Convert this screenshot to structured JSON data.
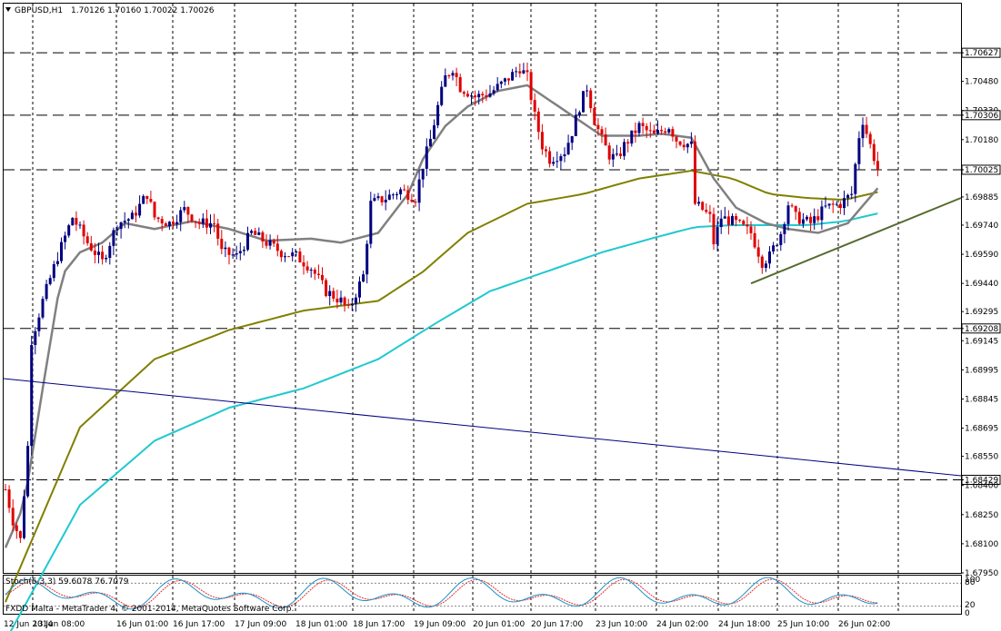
{
  "header": {
    "symbol": "GBPUSD,H1",
    "ohlc": "1.70126 1.70160 1.70022 1.70026"
  },
  "footer": {
    "broker": "FXDD Malta - MetaTrader 4, © 2001-2014, MetaQuotes Software Corp."
  },
  "indicator": {
    "label": "Stoch(5,3,3) 59.6078 76.7079",
    "levels": [
      "100",
      "80",
      "20",
      "0"
    ],
    "main_color": "#1e90c8",
    "signal_color": "#e03030"
  },
  "colors": {
    "bull": "#000080",
    "bear": "#e00000",
    "ma_fast": "#808080",
    "ma_mid": "#808000",
    "ma_slow": "#20c8d0",
    "trend_support": "#556b2f",
    "trend_blue": "#000080",
    "grid": "#000000"
  },
  "chart_data": {
    "type": "candlestick",
    "y_ticks": [
      "1.70627",
      "1.70480",
      "1.70330",
      "1.70306",
      "1.70180",
      "1.70025",
      "1.69885",
      "1.69740",
      "1.69590",
      "1.69440",
      "1.69295",
      "1.69208",
      "1.69145",
      "1.68995",
      "1.68845",
      "1.68695",
      "1.68550",
      "1.68429",
      "1.68400",
      "1.68250",
      "1.68100",
      "1.67950"
    ],
    "highlighted_levels": [
      "1.70627",
      "1.70306",
      "1.70025",
      "1.69208",
      "1.68429"
    ],
    "ylim": [
      1.6795,
      1.7088
    ],
    "x_ticks": [
      "12 Jun 2014",
      "13 Jun 08:00",
      "16 Jun 01:00",
      "16 Jun 17:00",
      "17 Jun 09:00",
      "18 Jun 01:00",
      "18 Jun 17:00",
      "19 Jun 09:00",
      "20 Jun 01:00",
      "20 Jun 17:00",
      "23 Jun 10:00",
      "24 Jun 02:00",
      "24 Jun 18:00",
      "25 Jun 10:00",
      "26 Jun 02:00"
    ],
    "close_anchors": [
      [
        0,
        1.6838
      ],
      [
        2,
        1.6822
      ],
      [
        4,
        1.6812
      ],
      [
        6,
        1.686
      ],
      [
        7,
        1.6915
      ],
      [
        10,
        1.6935
      ],
      [
        14,
        1.6958
      ],
      [
        18,
        1.6978
      ],
      [
        22,
        1.6965
      ],
      [
        26,
        1.6955
      ],
      [
        30,
        1.6975
      ],
      [
        34,
        1.6978
      ],
      [
        38,
        1.699
      ],
      [
        40,
        1.6978
      ],
      [
        44,
        1.6975
      ],
      [
        48,
        1.6982
      ],
      [
        52,
        1.6975
      ],
      [
        56,
        1.6975
      ],
      [
        58,
        1.696
      ],
      [
        62,
        1.6958
      ],
      [
        66,
        1.697
      ],
      [
        70,
        1.6965
      ],
      [
        74,
        1.696
      ],
      [
        78,
        1.6958
      ],
      [
        82,
        1.6952
      ],
      [
        86,
        1.694
      ],
      [
        90,
        1.6935
      ],
      [
        92,
        1.693
      ],
      [
        96,
        1.6948
      ],
      [
        98,
        1.6985
      ],
      [
        102,
        1.6988
      ],
      [
        106,
        1.6992
      ],
      [
        110,
        1.6988
      ],
      [
        112,
        1.7005
      ],
      [
        114,
        1.7018
      ],
      [
        116,
        1.7035
      ],
      [
        118,
        1.705
      ],
      [
        120,
        1.7055
      ],
      [
        122,
        1.7045
      ],
      [
        126,
        1.704
      ],
      [
        130,
        1.7042
      ],
      [
        134,
        1.7048
      ],
      [
        138,
        1.7055
      ],
      [
        140,
        1.705
      ],
      [
        142,
        1.703
      ],
      [
        144,
        1.7015
      ],
      [
        146,
        1.7008
      ],
      [
        150,
        1.7012
      ],
      [
        152,
        1.7022
      ],
      [
        154,
        1.7035
      ],
      [
        156,
        1.7045
      ],
      [
        158,
        1.7028
      ],
      [
        160,
        1.7018
      ],
      [
        162,
        1.701
      ],
      [
        164,
        1.7008
      ],
      [
        166,
        1.7015
      ],
      [
        168,
        1.702
      ],
      [
        170,
        1.7025
      ],
      [
        174,
        1.702
      ],
      [
        178,
        1.7025
      ],
      [
        180,
        1.7018
      ],
      [
        184,
        1.7015
      ],
      [
        185,
        1.6985
      ],
      [
        187,
        1.6982
      ],
      [
        189,
        1.6978
      ],
      [
        190,
        1.6965
      ],
      [
        192,
        1.6978
      ],
      [
        196,
        1.6975
      ],
      [
        200,
        1.697
      ],
      [
        203,
        1.6955
      ],
      [
        205,
        1.6958
      ],
      [
        208,
        1.697
      ],
      [
        210,
        1.6985
      ],
      [
        212,
        1.6978
      ],
      [
        216,
        1.6975
      ],
      [
        220,
        1.6983
      ],
      [
        224,
        1.6985
      ],
      [
        227,
        1.699
      ],
      [
        229,
        1.702
      ],
      [
        230,
        1.7028
      ],
      [
        232,
        1.7015
      ],
      [
        234,
        1.7003
      ]
    ],
    "ma_fast": [
      [
        0,
        1.6808
      ],
      [
        5,
        1.683
      ],
      [
        10,
        1.689
      ],
      [
        15,
        1.6948
      ],
      [
        20,
        1.696
      ],
      [
        26,
        1.6965
      ],
      [
        32,
        1.6975
      ],
      [
        40,
        1.6972
      ],
      [
        50,
        1.6976
      ],
      [
        60,
        1.6972
      ],
      [
        70,
        1.6966
      ],
      [
        82,
        1.6967
      ],
      [
        90,
        1.6965
      ],
      [
        100,
        1.697
      ],
      [
        108,
        1.699
      ],
      [
        112,
        1.7008
      ],
      [
        118,
        1.7025
      ],
      [
        124,
        1.7035
      ],
      [
        132,
        1.7043
      ],
      [
        140,
        1.7046
      ],
      [
        150,
        1.7033
      ],
      [
        160,
        1.702
      ],
      [
        170,
        1.702
      ],
      [
        176,
        1.7021
      ],
      [
        184,
        1.7019
      ],
      [
        190,
        1.6998
      ],
      [
        196,
        1.6983
      ],
      [
        204,
        1.6975
      ],
      [
        210,
        1.6972
      ],
      [
        218,
        1.697
      ],
      [
        226,
        1.6975
      ],
      [
        234,
        1.6993
      ]
    ],
    "ma_mid": [
      [
        0,
        1.678
      ],
      [
        20,
        1.687
      ],
      [
        40,
        1.6905
      ],
      [
        60,
        1.692
      ],
      [
        80,
        1.693
      ],
      [
        100,
        1.6935
      ],
      [
        112,
        1.695
      ],
      [
        124,
        1.697
      ],
      [
        140,
        1.6985
      ],
      [
        155,
        1.699
      ],
      [
        170,
        1.6998
      ],
      [
        184,
        1.7002
      ],
      [
        195,
        1.6998
      ],
      [
        205,
        1.699
      ],
      [
        215,
        1.6988
      ],
      [
        225,
        1.6987
      ],
      [
        234,
        1.6991
      ]
    ],
    "ma_slow": [
      [
        0,
        1.676
      ],
      [
        20,
        1.683
      ],
      [
        40,
        1.6863
      ],
      [
        60,
        1.688
      ],
      [
        80,
        1.689
      ],
      [
        100,
        1.6905
      ],
      [
        115,
        1.6923
      ],
      [
        130,
        1.694
      ],
      [
        145,
        1.695
      ],
      [
        160,
        1.696
      ],
      [
        175,
        1.6968
      ],
      [
        185,
        1.6973
      ],
      [
        195,
        1.6974
      ],
      [
        205,
        1.6974
      ],
      [
        215,
        1.6974
      ],
      [
        225,
        1.6976
      ],
      [
        234,
        1.698
      ]
    ],
    "trendline_support": {
      "from": [
        200,
        1.6944
      ],
      "to": [
        260,
        1.6988
      ]
    },
    "trendline_blue": {
      "from": [
        -2,
        1.6895
      ],
      "to": [
        260,
        1.6845
      ]
    }
  }
}
